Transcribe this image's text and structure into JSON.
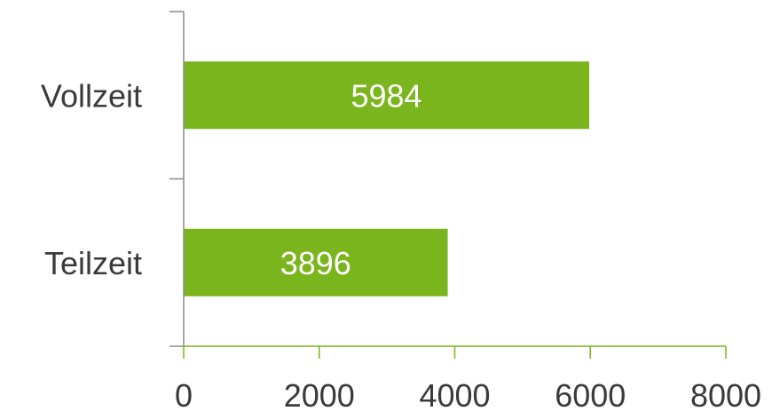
{
  "chart_data": {
    "type": "bar",
    "orientation": "horizontal",
    "categories": [
      "Vollzeit",
      "Teilzeit"
    ],
    "values": [
      5984,
      3896
    ],
    "data_labels": [
      "5984",
      "3896"
    ],
    "xlim": [
      0,
      8000
    ],
    "xticks": [
      0,
      2000,
      4000,
      6000,
      8000
    ],
    "xtick_labels": [
      "0",
      "2000",
      "4000",
      "6000",
      "8000"
    ],
    "title": "",
    "xlabel": "",
    "ylabel": "",
    "grid": false,
    "legend": "none",
    "colors": {
      "bar": "#7ab51d",
      "x_axis": "#7ab51d",
      "y_axis": "#8c8c8c",
      "text": "#3a3a3a",
      "bar_label": "#ffffff"
    }
  }
}
